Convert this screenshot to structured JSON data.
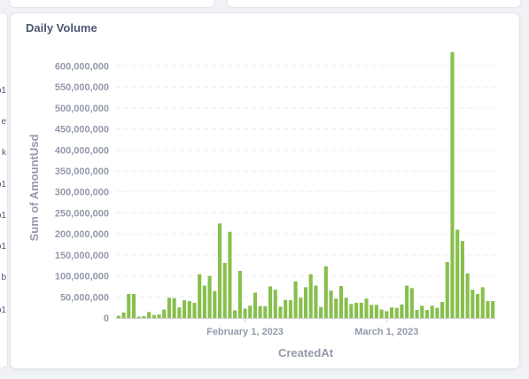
{
  "left_panel": {
    "labels": [
      "o1",
      "e",
      "k",
      "o1",
      "o1",
      "o1",
      "b",
      "o1"
    ]
  },
  "card": {
    "title": "Daily Volume"
  },
  "colors": {
    "bar": "#88bf4d",
    "grid": "#eceef1",
    "axis": "#c5c9d1",
    "text": "#949aab",
    "title": "#4c5773"
  },
  "chart_data": {
    "type": "bar",
    "title": "Daily Volume",
    "xlabel": "CreatedAt",
    "ylabel": "Sum of AmountUsd",
    "ylim": [
      0,
      620000000
    ],
    "yticks": [
      0,
      50000000,
      100000000,
      150000000,
      200000000,
      250000000,
      300000000,
      350000000,
      400000000,
      450000000,
      500000000,
      550000000,
      600000000
    ],
    "ytick_labels": [
      "0",
      "50,000,000",
      "100,000,000",
      "150,000,000",
      "200,000,000",
      "250,000,000",
      "300,000,000",
      "350,000,000",
      "400,000,000",
      "450,000,000",
      "500,000,000",
      "550,000,000",
      "600,000,000"
    ],
    "x_start": "2023-01-07",
    "x_end": "2023-03-22",
    "xtick_labels": [
      {
        "date": "2023-02-01",
        "label": "February 1, 2023"
      },
      {
        "date": "2023-03-01",
        "label": "March 1, 2023"
      }
    ],
    "grid": true,
    "legend": "none",
    "x": [
      "2023-01-07",
      "2023-01-08",
      "2023-01-09",
      "2023-01-10",
      "2023-01-11",
      "2023-01-12",
      "2023-01-13",
      "2023-01-14",
      "2023-01-15",
      "2023-01-16",
      "2023-01-17",
      "2023-01-18",
      "2023-01-19",
      "2023-01-20",
      "2023-01-21",
      "2023-01-22",
      "2023-01-23",
      "2023-01-24",
      "2023-01-25",
      "2023-01-26",
      "2023-01-27",
      "2023-01-28",
      "2023-01-29",
      "2023-01-30",
      "2023-01-31",
      "2023-02-01",
      "2023-02-02",
      "2023-02-03",
      "2023-02-04",
      "2023-02-05",
      "2023-02-06",
      "2023-02-07",
      "2023-02-08",
      "2023-02-09",
      "2023-02-10",
      "2023-02-11",
      "2023-02-12",
      "2023-02-13",
      "2023-02-14",
      "2023-02-15",
      "2023-02-16",
      "2023-02-17",
      "2023-02-18",
      "2023-02-19",
      "2023-02-20",
      "2023-02-21",
      "2023-02-22",
      "2023-02-23",
      "2023-02-24",
      "2023-02-25",
      "2023-02-26",
      "2023-02-27",
      "2023-02-28",
      "2023-03-01",
      "2023-03-02",
      "2023-03-03",
      "2023-03-04",
      "2023-03-05",
      "2023-03-06",
      "2023-03-07",
      "2023-03-08",
      "2023-03-09",
      "2023-03-10",
      "2023-03-11",
      "2023-03-12",
      "2023-03-13",
      "2023-03-14",
      "2023-03-15",
      "2023-03-16",
      "2023-03-17",
      "2023-03-18",
      "2023-03-19",
      "2023-03-20",
      "2023-03-21",
      "2023-03-22"
    ],
    "values": [
      5000000,
      13000000,
      57000000,
      57000000,
      3000000,
      4000000,
      14000000,
      7000000,
      8000000,
      20000000,
      48000000,
      47000000,
      25000000,
      42000000,
      40000000,
      36000000,
      104000000,
      77000000,
      100000000,
      64000000,
      225000000,
      131000000,
      205000000,
      18000000,
      112000000,
      22000000,
      29000000,
      60000000,
      28000000,
      28000000,
      75000000,
      67000000,
      27000000,
      43000000,
      42000000,
      87000000,
      48000000,
      73000000,
      104000000,
      77000000,
      26000000,
      123000000,
      65000000,
      46000000,
      76000000,
      48000000,
      33000000,
      36000000,
      36000000,
      46000000,
      31000000,
      31000000,
      20000000,
      16000000,
      25000000,
      24000000,
      32000000,
      77000000,
      71000000,
      19000000,
      29000000,
      19000000,
      29000000,
      24000000,
      38000000,
      133000000,
      633000000,
      210000000,
      183000000,
      106000000,
      67000000,
      57000000,
      73000000,
      40000000,
      40000000
    ]
  }
}
